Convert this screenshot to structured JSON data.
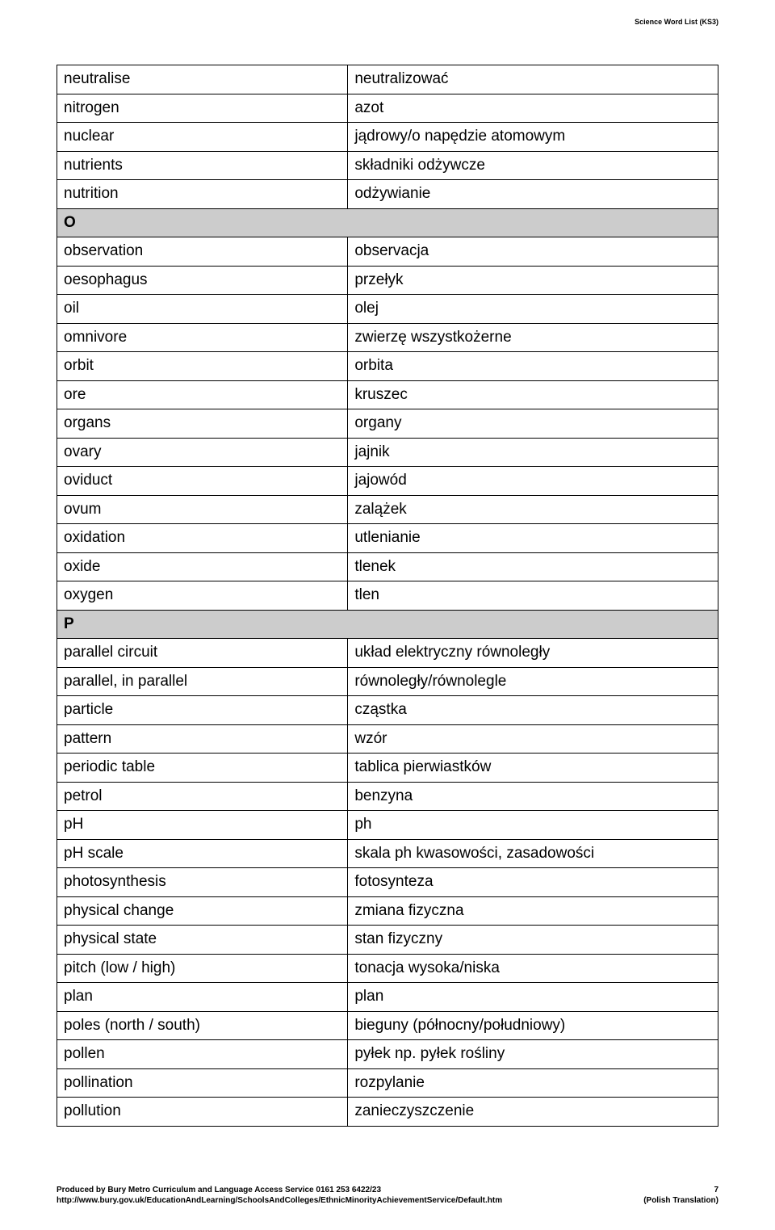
{
  "header": {
    "title": "Science Word List (KS3)"
  },
  "table": {
    "columns": [
      "english",
      "translation"
    ],
    "rows": [
      {
        "type": "data",
        "en": "neutralise",
        "tr": "neutralizować"
      },
      {
        "type": "data",
        "en": "nitrogen",
        "tr": "azot"
      },
      {
        "type": "data",
        "en": "nuclear",
        "tr": "jądrowy/o napędzie atomowym"
      },
      {
        "type": "data",
        "en": "nutrients",
        "tr": "składniki odżywcze"
      },
      {
        "type": "data",
        "en": "nutrition",
        "tr": "odżywianie"
      },
      {
        "type": "section",
        "label": "O"
      },
      {
        "type": "data",
        "en": "observation",
        "tr": "observacja"
      },
      {
        "type": "data",
        "en": "oesophagus",
        "tr": "przełyk"
      },
      {
        "type": "data",
        "en": "oil",
        "tr": "olej"
      },
      {
        "type": "data",
        "en": "omnivore",
        "tr": "zwierzę wszystkożerne"
      },
      {
        "type": "data",
        "en": "orbit",
        "tr": "orbita"
      },
      {
        "type": "data",
        "en": "ore",
        "tr": "kruszec"
      },
      {
        "type": "data",
        "en": "organs",
        "tr": "organy"
      },
      {
        "type": "data",
        "en": "ovary",
        "tr": "jajnik"
      },
      {
        "type": "data",
        "en": "oviduct",
        "tr": "jajowód"
      },
      {
        "type": "data",
        "en": "ovum",
        "tr": "zalążek"
      },
      {
        "type": "data",
        "en": "oxidation",
        "tr": "utlenianie"
      },
      {
        "type": "data",
        "en": "oxide",
        "tr": "tlenek"
      },
      {
        "type": "data",
        "en": "oxygen",
        "tr": "tlen"
      },
      {
        "type": "section",
        "label": "P"
      },
      {
        "type": "data",
        "en": "parallel circuit",
        "tr": "układ elektryczny równoległy"
      },
      {
        "type": "data",
        "en": "parallel, in parallel",
        "tr": "równoległy/równolegle"
      },
      {
        "type": "data",
        "en": "particle",
        "tr": "cząstka"
      },
      {
        "type": "data",
        "en": "pattern",
        "tr": "wzór"
      },
      {
        "type": "data",
        "en": "periodic table",
        "tr": "tablica pierwiastków"
      },
      {
        "type": "data",
        "en": "petrol",
        "tr": "benzyna"
      },
      {
        "type": "data",
        "en": "pH",
        "tr": "ph"
      },
      {
        "type": "data",
        "en": "pH scale",
        "tr": "skala ph kwasowości, zasadowości"
      },
      {
        "type": "data",
        "en": "photosynthesis",
        "tr": "fotosynteza"
      },
      {
        "type": "data",
        "en": "physical change",
        "tr": "zmiana fizyczna"
      },
      {
        "type": "data",
        "en": "physical state",
        "tr": "stan fizyczny"
      },
      {
        "type": "data",
        "en": "pitch (low / high)",
        "tr": "tonacja wysoka/niska"
      },
      {
        "type": "data",
        "en": "plan",
        "tr": "plan"
      },
      {
        "type": "data",
        "en": "poles (north / south)",
        "tr": "bieguny (północny/południowy)"
      },
      {
        "type": "data",
        "en": "pollen",
        "tr": "pyłek np. pyłek rośliny"
      },
      {
        "type": "data",
        "en": "pollination",
        "tr": "rozpylanie"
      },
      {
        "type": "data",
        "en": "pollution",
        "tr": "zanieczyszczenie"
      }
    ],
    "styles": {
      "border_color": "#000000",
      "section_bg": "#cccccc",
      "font_size_pt": 14,
      "col_widths": [
        "44%",
        "56%"
      ]
    }
  },
  "footer": {
    "producer_line1": "Produced by Bury Metro Curriculum and Language Access Service 0161 253 6422/23",
    "producer_line2": "http://www.bury.gov.uk/EducationAndLearning/SchoolsAndColleges/EthnicMinorityAchievementService/Default.htm",
    "page_number": "7",
    "translation_note": "(Polish Translation)"
  }
}
